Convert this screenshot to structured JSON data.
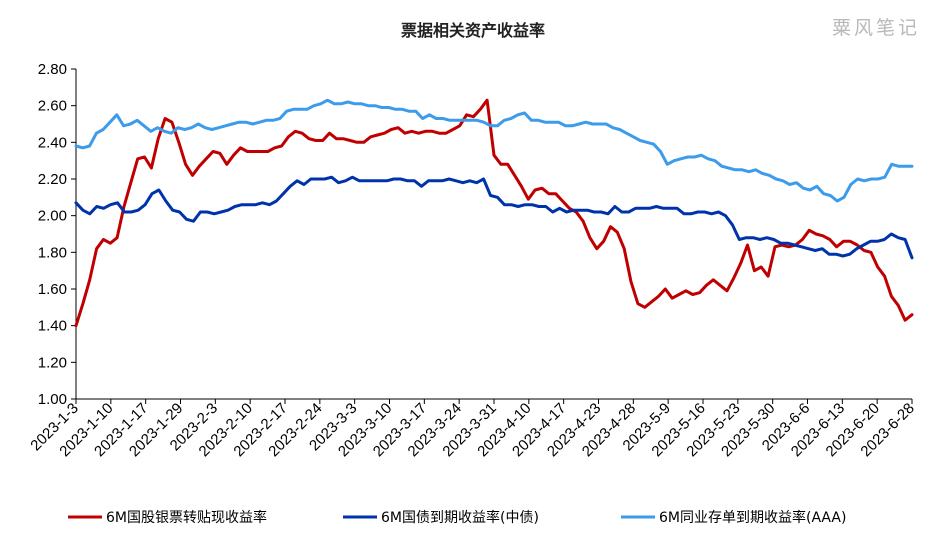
{
  "watermark": "粟风笔记",
  "chart_data": {
    "type": "line",
    "title": "票据相关资产收益率",
    "xlabel": "",
    "ylabel": "",
    "ylim": [
      1.0,
      2.8
    ],
    "yticks": [
      "1.00",
      "1.20",
      "1.40",
      "1.60",
      "1.80",
      "2.00",
      "2.20",
      "2.40",
      "2.60",
      "2.80"
    ],
    "grid": false,
    "legend_position": "bottom",
    "x_start": "2023-1-3",
    "x_ticks": [
      "2023-1-3",
      "2023-1-10",
      "2023-1-17",
      "2023-1-29",
      "2023-2-3",
      "2023-2-10",
      "2023-2-17",
      "2023-2-24",
      "2023-3-3",
      "2023-3-10",
      "2023-3-17",
      "2023-3-24",
      "2023-3-31",
      "2023-4-10",
      "2023-4-17",
      "2023-4-23",
      "2023-4-28",
      "2023-5-9",
      "2023-5-16",
      "2023-5-23",
      "2023-5-30",
      "2023-6-6",
      "2023-6-13",
      "2023-6-20",
      "2023-6-28"
    ],
    "series": [
      {
        "name": "6M国股银票转贴现收益率",
        "color": "#c00000",
        "values": [
          1.4,
          1.52,
          1.65,
          1.82,
          1.87,
          1.85,
          1.88,
          2.05,
          2.18,
          2.31,
          2.32,
          2.26,
          2.42,
          2.53,
          2.51,
          2.4,
          2.28,
          2.22,
          2.27,
          2.31,
          2.35,
          2.34,
          2.28,
          2.33,
          2.37,
          2.35,
          2.35,
          2.35,
          2.35,
          2.37,
          2.38,
          2.43,
          2.46,
          2.45,
          2.42,
          2.41,
          2.41,
          2.45,
          2.42,
          2.42,
          2.41,
          2.4,
          2.4,
          2.43,
          2.44,
          2.45,
          2.47,
          2.48,
          2.45,
          2.46,
          2.45,
          2.46,
          2.46,
          2.45,
          2.45,
          2.47,
          2.49,
          2.55,
          2.54,
          2.58,
          2.63,
          2.33,
          2.28,
          2.28,
          2.22,
          2.16,
          2.09,
          2.14,
          2.15,
          2.12,
          2.12,
          2.08,
          2.04,
          2.02,
          1.97,
          1.88,
          1.82,
          1.86,
          1.94,
          1.91,
          1.82,
          1.64,
          1.52,
          1.5,
          1.53,
          1.56,
          1.6,
          1.55,
          1.57,
          1.59,
          1.57,
          1.58,
          1.62,
          1.65,
          1.62,
          1.59,
          1.66,
          1.74,
          1.84,
          1.7,
          1.72,
          1.67,
          1.83,
          1.84,
          1.83,
          1.84,
          1.87,
          1.92,
          1.9,
          1.89,
          1.87,
          1.83,
          1.86,
          1.86,
          1.84,
          1.81,
          1.8,
          1.72,
          1.67,
          1.56,
          1.51,
          1.43,
          1.46
        ]
      },
      {
        "name": "6M国债到期收益率(中债)",
        "color": "#0033aa",
        "values": [
          2.07,
          2.03,
          2.01,
          2.05,
          2.04,
          2.06,
          2.07,
          2.02,
          2.02,
          2.03,
          2.06,
          2.12,
          2.14,
          2.08,
          2.03,
          2.02,
          1.98,
          1.97,
          2.02,
          2.02,
          2.01,
          2.02,
          2.03,
          2.05,
          2.06,
          2.06,
          2.06,
          2.07,
          2.06,
          2.08,
          2.12,
          2.16,
          2.19,
          2.17,
          2.2,
          2.2,
          2.2,
          2.21,
          2.18,
          2.19,
          2.21,
          2.19,
          2.19,
          2.19,
          2.19,
          2.19,
          2.2,
          2.2,
          2.19,
          2.19,
          2.16,
          2.19,
          2.19,
          2.19,
          2.2,
          2.19,
          2.18,
          2.19,
          2.18,
          2.2,
          2.11,
          2.1,
          2.06,
          2.06,
          2.05,
          2.06,
          2.06,
          2.05,
          2.05,
          2.02,
          2.04,
          2.02,
          2.03,
          2.03,
          2.03,
          2.02,
          2.02,
          2.01,
          2.05,
          2.02,
          2.02,
          2.04,
          2.04,
          2.04,
          2.05,
          2.04,
          2.04,
          2.04,
          2.01,
          2.01,
          2.02,
          2.02,
          2.01,
          2.02,
          2.0,
          1.95,
          1.87,
          1.88,
          1.88,
          1.87,
          1.88,
          1.87,
          1.85,
          1.85,
          1.84,
          1.83,
          1.82,
          1.81,
          1.82,
          1.79,
          1.79,
          1.78,
          1.79,
          1.82,
          1.84,
          1.86,
          1.86,
          1.87,
          1.9,
          1.88,
          1.87,
          1.77
        ]
      },
      {
        "name": "6M同业存单到期收益率(AAA)",
        "color": "#3c9bea",
        "values": [
          2.38,
          2.37,
          2.38,
          2.45,
          2.47,
          2.51,
          2.55,
          2.49,
          2.5,
          2.52,
          2.49,
          2.46,
          2.48,
          2.46,
          2.45,
          2.48,
          2.47,
          2.48,
          2.5,
          2.48,
          2.47,
          2.48,
          2.49,
          2.5,
          2.51,
          2.51,
          2.5,
          2.51,
          2.52,
          2.52,
          2.53,
          2.57,
          2.58,
          2.58,
          2.58,
          2.6,
          2.61,
          2.63,
          2.61,
          2.61,
          2.62,
          2.61,
          2.61,
          2.6,
          2.6,
          2.59,
          2.59,
          2.58,
          2.58,
          2.57,
          2.57,
          2.53,
          2.55,
          2.53,
          2.53,
          2.52,
          2.52,
          2.52,
          2.52,
          2.52,
          2.51,
          2.49,
          2.49,
          2.52,
          2.53,
          2.55,
          2.56,
          2.52,
          2.52,
          2.51,
          2.51,
          2.51,
          2.49,
          2.49,
          2.5,
          2.51,
          2.5,
          2.5,
          2.5,
          2.48,
          2.47,
          2.45,
          2.43,
          2.41,
          2.4,
          2.39,
          2.35,
          2.28,
          2.3,
          2.31,
          2.32,
          2.32,
          2.33,
          2.31,
          2.3,
          2.27,
          2.26,
          2.25,
          2.25,
          2.24,
          2.25,
          2.23,
          2.22,
          2.2,
          2.19,
          2.17,
          2.18,
          2.15,
          2.14,
          2.16,
          2.12,
          2.11,
          2.08,
          2.1,
          2.17,
          2.2,
          2.19,
          2.2,
          2.2,
          2.21,
          2.28,
          2.27,
          2.27,
          2.27
        ]
      }
    ]
  }
}
